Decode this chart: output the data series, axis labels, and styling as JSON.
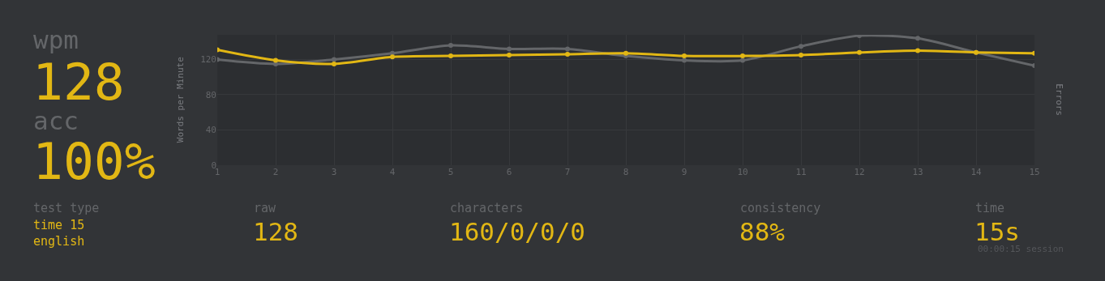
{
  "chart_data": {
    "type": "line",
    "x": [
      1,
      2,
      3,
      4,
      5,
      6,
      7,
      8,
      9,
      10,
      11,
      12,
      13,
      14,
      15
    ],
    "xlim": [
      1,
      15
    ],
    "xticks": [
      1,
      2,
      3,
      4,
      5,
      6,
      7,
      8,
      9,
      10,
      11,
      12,
      13,
      14,
      15
    ],
    "ylim": [
      0,
      148
    ],
    "yticks": [
      0,
      40,
      80,
      120
    ],
    "ylabel": "Words per Minute",
    "y2label": "Errors",
    "series": [
      {
        "color": "#646669",
        "values": [
          120,
          115,
          120,
          127,
          136,
          132,
          132,
          124,
          119,
          119,
          135,
          147,
          144,
          128,
          113
        ]
      },
      {
        "color": "#e2b714",
        "values": [
          131,
          119,
          115,
          123,
          124,
          125,
          126,
          127,
          124,
          124,
          125,
          128,
          130,
          128,
          127
        ]
      }
    ],
    "grid": true,
    "marker": "circle",
    "line_style": "solid",
    "annotations": [
      "wpm",
      "128",
      "acc",
      "100%",
      "test type",
      "time 15",
      "english",
      "raw",
      "128",
      "characters",
      "160/0/0/0",
      "consistency",
      "88%",
      "time",
      "15s",
      "00:00:15 session"
    ]
  }
}
